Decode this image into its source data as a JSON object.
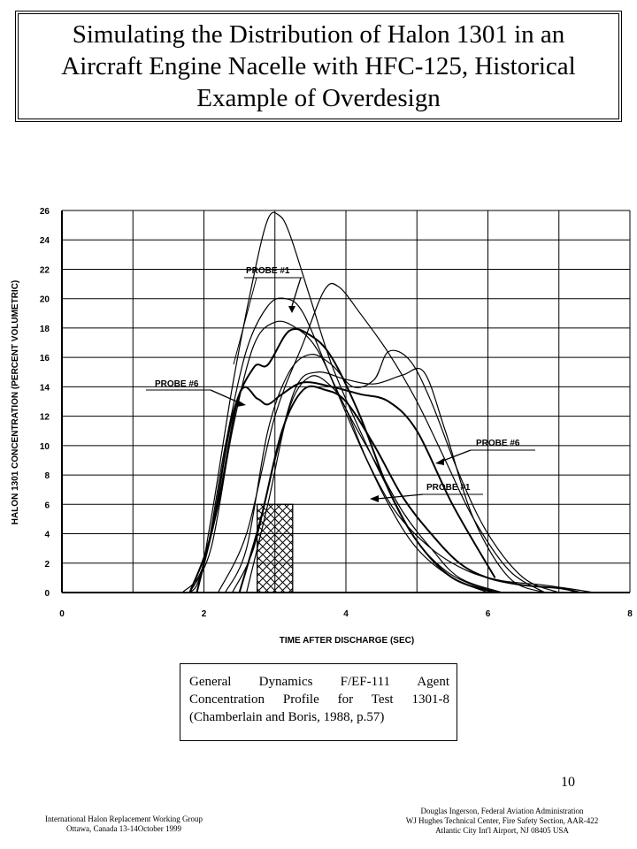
{
  "title": "Simulating the Distribution of Halon 1301 in an Aircraft Engine Nacelle with HFC-125, Historical Example of Overdesign",
  "chart_data": {
    "type": "line",
    "xlabel": "TIME AFTER DISCHARGE (SEC)",
    "ylabel": "HALON 1301 CONCENTRATION (PERCENT VOLUMETRIC)",
    "xlim": [
      0,
      8
    ],
    "ylim": [
      0,
      26
    ],
    "x_ticks": [
      "0",
      "2",
      "4",
      "6",
      "8"
    ],
    "y_ticks": [
      "0",
      "2",
      "4",
      "6",
      "8",
      "10",
      "12",
      "14",
      "16",
      "18",
      "20",
      "22",
      "24",
      "26"
    ],
    "grid": true,
    "annotations": [
      {
        "text": "PROBE #1",
        "position": "upper"
      },
      {
        "text": "PROBE #6",
        "position": "left"
      },
      {
        "text": "PROBE #6",
        "position": "right"
      },
      {
        "text": "PROBE #1",
        "position": "lower-right"
      }
    ],
    "hatched_region": {
      "x_start": 2.75,
      "x_end": 3.25,
      "y_end": 6
    },
    "series": [
      {
        "x": [
          1.6,
          1.9,
          2.1,
          2.4,
          2.7,
          2.9,
          3.05,
          3.2,
          3.5,
          3.8,
          4.2,
          4.6,
          5.0,
          5.4,
          5.8,
          6.2
        ],
        "y": [
          0,
          0.5,
          5,
          14,
          21.5,
          25.4,
          25.7,
          24.5,
          20,
          15.5,
          11,
          7,
          3.5,
          1.5,
          0.5,
          0
        ]
      },
      {
        "x": [
          1.7,
          2.0,
          2.3,
          2.6,
          2.9,
          3.15,
          3.4,
          3.8,
          4.2,
          4.6,
          5.0,
          5.5,
          6.0
        ],
        "y": [
          0,
          2,
          10,
          16.5,
          19.5,
          20,
          19,
          14.5,
          10,
          6,
          3,
          1,
          0
        ]
      },
      {
        "x": [
          1.8,
          2.1,
          2.4,
          2.7,
          2.9,
          3.2,
          3.5,
          3.8,
          4.2,
          4.6,
          5.0,
          5.5,
          6.1
        ],
        "y": [
          0,
          4,
          12,
          15.3,
          15.5,
          17.8,
          17.5,
          16,
          12,
          7,
          3.5,
          1,
          0
        ]
      },
      {
        "x": [
          1.8,
          2.1,
          2.4,
          2.7,
          3.0,
          3.3,
          3.6,
          4.0,
          4.4,
          4.8,
          5.2,
          5.6,
          6.2
        ],
        "y": [
          0,
          3,
          11,
          16.8,
          18.4,
          18,
          16.5,
          12.5,
          9,
          5.5,
          3,
          1,
          0
        ]
      },
      {
        "x": [
          1.9,
          2.2,
          2.5,
          2.75,
          2.9,
          3.1,
          3.4,
          3.8,
          4.2,
          4.6,
          5.0,
          5.5,
          6.1
        ],
        "y": [
          0,
          6,
          13.5,
          13.2,
          12.8,
          13.5,
          14.3,
          14,
          13.5,
          13,
          11,
          6,
          1
        ]
      },
      {
        "x": [
          2.2,
          2.6,
          3.0,
          3.4,
          3.7,
          3.9,
          4.2,
          4.6,
          5.0,
          5.4,
          5.8,
          6.3,
          6.8
        ],
        "y": [
          0,
          4,
          12,
          17,
          20.6,
          20.8,
          19,
          16.3,
          13,
          9,
          5,
          1.5,
          0
        ]
      },
      {
        "x": [
          2.3,
          2.6,
          2.9,
          3.2,
          3.5,
          3.8,
          4.1,
          4.4,
          4.6,
          4.9,
          5.2,
          5.6,
          6.0,
          6.5,
          7.0
        ],
        "y": [
          0,
          3,
          11,
          15,
          16.2,
          15.5,
          14,
          14.5,
          16.4,
          15.8,
          13,
          8,
          4,
          1,
          0
        ]
      },
      {
        "x": [
          2.4,
          2.7,
          3.0,
          3.3,
          3.6,
          4.0,
          4.4,
          4.8,
          5.1,
          5.4,
          5.8,
          6.3,
          6.8
        ],
        "y": [
          0,
          3,
          9,
          14,
          15,
          14.5,
          14.2,
          14.8,
          15,
          11,
          5,
          1,
          0
        ]
      },
      {
        "x": [
          2.5,
          2.8,
          3.1,
          3.4,
          3.7,
          4.0,
          4.4,
          4.8,
          5.2,
          5.6,
          6.0,
          6.5,
          7.0,
          7.3
        ],
        "y": [
          0,
          5,
          11,
          13.8,
          13.8,
          13,
          10,
          6.5,
          4,
          2,
          1,
          0.5,
          0.3,
          0
        ]
      },
      {
        "x": [
          2.6,
          2.9,
          3.2,
          3.5,
          3.8,
          4.0,
          4.3,
          4.7,
          5.2,
          5.7,
          6.2,
          6.8,
          7.5
        ],
        "y": [
          0,
          6,
          12.5,
          14.7,
          14,
          12.5,
          9,
          5.5,
          3,
          1.5,
          0.8,
          0.5,
          0
        ]
      }
    ]
  },
  "caption": "General Dynamics F/EF-111 Agent Concentration Profile for Test 1301-8 (Chamberlain and Boris, 1988, p.57)",
  "page_number": "10",
  "footer_left": {
    "line1": "International Halon Replacement Working Group",
    "line2": "Ottawa, Canada     13-14October 1999"
  },
  "footer_right": {
    "line1": "Douglas Ingerson, Federal Aviation Administration",
    "line2": "WJ Hughes Technical Center, Fire Safety Section, AAR-422",
    "line3": "Atlantic City Int'l Airport, NJ 08405  USA"
  }
}
